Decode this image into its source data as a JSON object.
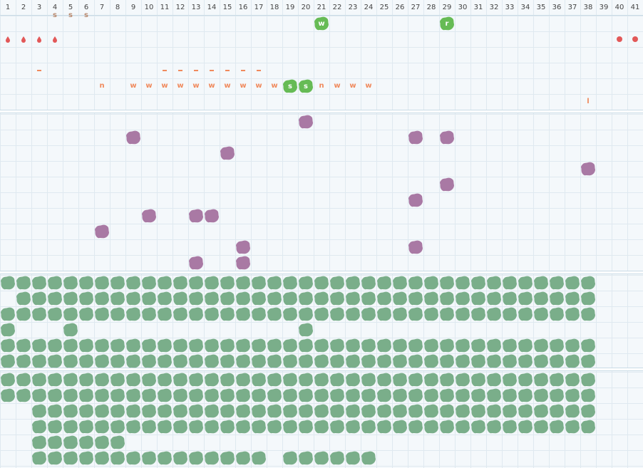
{
  "columns": [
    "1",
    "2",
    "3",
    "4",
    "5",
    "6",
    "7",
    "8",
    "9",
    "10",
    "11",
    "12",
    "13",
    "14",
    "15",
    "16",
    "17",
    "18",
    "19",
    "20",
    "21",
    "22",
    "23",
    "24",
    "25",
    "26",
    "27",
    "28",
    "29",
    "30",
    "31",
    "32",
    "33",
    "34",
    "35",
    "36",
    "37",
    "38",
    "39",
    "40",
    "41"
  ],
  "colors": {
    "orange": "#f08a5d",
    "purple": "#a979a4",
    "green_bright": "#66bb55",
    "green_dark": "#7aae8a",
    "brown": "#b98a6e",
    "red": "#e25858"
  },
  "top_section": {
    "row1_marks": [
      {
        "col": 4,
        "text": "s"
      },
      {
        "col": 5,
        "text": "s"
      },
      {
        "col": 6,
        "text": "s"
      }
    ],
    "row1_badges": [
      {
        "col": 21,
        "text": "w"
      },
      {
        "col": 29,
        "text": "r"
      }
    ],
    "row2_drops": [
      1,
      2,
      3,
      4
    ],
    "row2_dots": [
      40,
      41
    ],
    "row4_dashes": [
      3,
      11,
      12,
      13,
      14,
      15,
      16,
      17
    ],
    "row5_letters": [
      {
        "col": 7,
        "text": "n"
      },
      {
        "col": 9,
        "text": "w"
      },
      {
        "col": 10,
        "text": "w"
      },
      {
        "col": 11,
        "text": "w"
      },
      {
        "col": 12,
        "text": "w"
      },
      {
        "col": 13,
        "text": "w"
      },
      {
        "col": 14,
        "text": "w"
      },
      {
        "col": 15,
        "text": "w"
      },
      {
        "col": 16,
        "text": "w"
      },
      {
        "col": 17,
        "text": "w"
      },
      {
        "col": 18,
        "text": "w"
      },
      {
        "col": 21,
        "text": "n"
      },
      {
        "col": 22,
        "text": "w"
      },
      {
        "col": 23,
        "text": "w"
      },
      {
        "col": 24,
        "text": "w"
      }
    ],
    "row5_badges": [
      {
        "col": 19,
        "text": "s"
      },
      {
        "col": 20,
        "text": "s"
      }
    ],
    "row6_marks": [
      {
        "col": 38,
        "text": "l"
      }
    ]
  },
  "purple_section": {
    "cells": [
      [
        20,
        0
      ],
      [
        9,
        1
      ],
      [
        27,
        1
      ],
      [
        29,
        1
      ],
      [
        15,
        2
      ],
      [
        38,
        3
      ],
      [
        29,
        4
      ],
      [
        27,
        5
      ],
      [
        10,
        6
      ],
      [
        13,
        6
      ],
      [
        14,
        6
      ],
      [
        7,
        7
      ],
      [
        16,
        8
      ],
      [
        27,
        8
      ],
      [
        13,
        9
      ],
      [
        16,
        9
      ]
    ]
  },
  "green_section_a": {
    "rows": [
      {
        "cols": "1-38"
      },
      {
        "cols": "2-38"
      },
      {
        "cols": "1-38"
      },
      {
        "list": [
          1,
          5,
          20
        ]
      },
      {
        "cols": "1-38"
      },
      {
        "cols": "1-38"
      }
    ]
  },
  "green_section_b": {
    "rows": [
      {
        "cols": "1-38"
      },
      {
        "cols": "1-38"
      },
      {
        "cols": "3-38"
      },
      {
        "cols": "3-38"
      },
      {
        "cols": "3-8"
      },
      {
        "list": [
          3,
          4,
          5,
          6,
          7,
          8,
          9,
          10,
          11,
          12,
          13,
          14,
          15,
          16,
          17,
          19,
          20,
          21,
          22,
          23,
          24
        ]
      }
    ]
  }
}
